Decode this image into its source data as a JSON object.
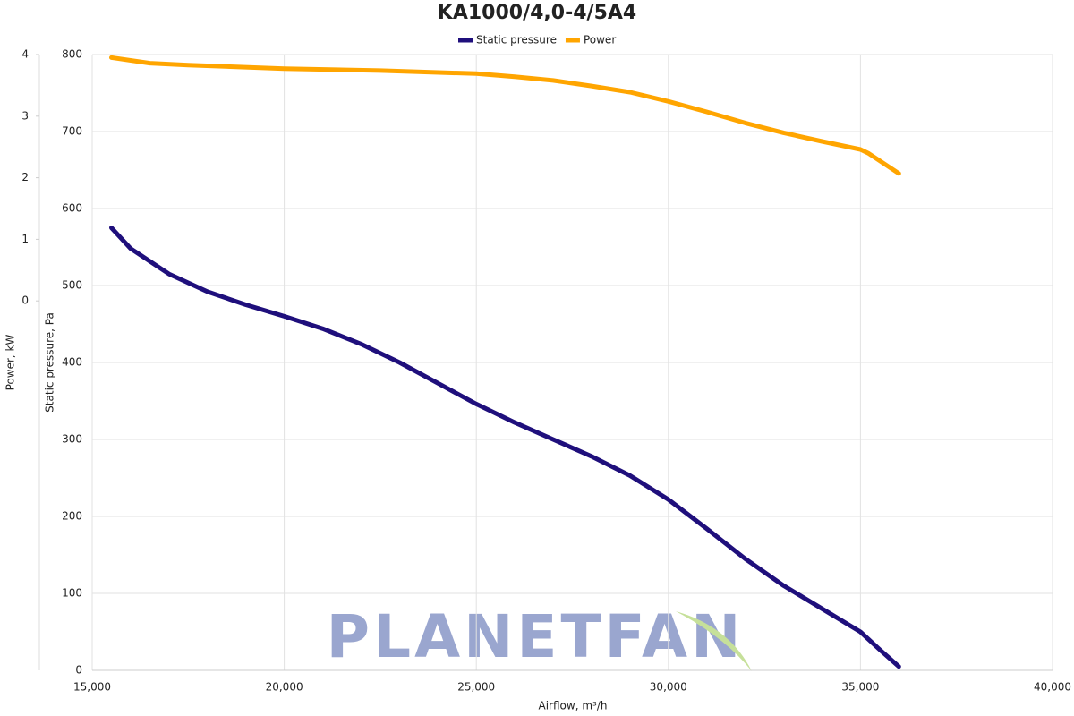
{
  "chart_data": {
    "type": "line",
    "title": "KA1000/4,0-4/5A4",
    "x_label": "Airflow, m³/h",
    "y_label": "Static pressure, Pa",
    "y2_label": "Power, kW",
    "watermark": "PLANETFAN",
    "xlim": [
      15000,
      40000
    ],
    "xticks": [
      {
        "value": 15000,
        "label": "15,000"
      },
      {
        "value": 20000,
        "label": "20,000"
      },
      {
        "value": 25000,
        "label": "25,000"
      },
      {
        "value": 30000,
        "label": "30,000"
      },
      {
        "value": 35000,
        "label": "35,000"
      },
      {
        "value": 40000,
        "label": "40,000"
      }
    ],
    "ylim": [
      0,
      800
    ],
    "yticks": [
      0,
      100,
      200,
      300,
      400,
      500,
      600,
      700,
      800
    ],
    "y2lim": [
      -6,
      4
    ],
    "y2ticks": [
      0,
      1,
      2,
      3,
      4
    ],
    "grid": true,
    "legend": "top",
    "series": [
      {
        "name": "Static pressure",
        "color": "#1f0f7c",
        "x": [
          15500,
          16000,
          17000,
          18000,
          19000,
          20000,
          21000,
          22000,
          23000,
          24000,
          25000,
          26000,
          27000,
          28000,
          29000,
          30000,
          31000,
          32000,
          33000,
          34000,
          35000,
          35500,
          36000
        ],
        "values": [
          575,
          548,
          515,
          492,
          475,
          460,
          444,
          424,
          400,
          373,
          346,
          322,
          300,
          278,
          253,
          222,
          184,
          145,
          110,
          80,
          50,
          27,
          5
        ]
      },
      {
        "name": "Power",
        "color": "#ffa500",
        "axis": "y2",
        "x": [
          15500,
          16500,
          17500,
          20000,
          22500,
          25000,
          26000,
          27000,
          28000,
          29000,
          30000,
          31000,
          32000,
          33000,
          34000,
          35000,
          35200,
          36000
        ],
        "values": [
          3.95,
          3.86,
          3.83,
          3.77,
          3.74,
          3.69,
          3.64,
          3.58,
          3.49,
          3.39,
          3.24,
          3.07,
          2.89,
          2.73,
          2.59,
          2.46,
          2.4,
          2.07
        ]
      }
    ]
  }
}
